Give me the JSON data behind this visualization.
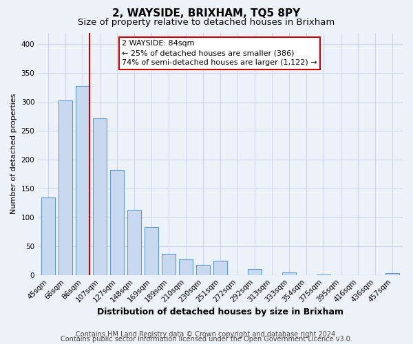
{
  "title": "2, WAYSIDE, BRIXHAM, TQ5 8PY",
  "subtitle": "Size of property relative to detached houses in Brixham",
  "xlabel": "Distribution of detached houses by size in Brixham",
  "ylabel": "Number of detached properties",
  "categories": [
    "45sqm",
    "66sqm",
    "86sqm",
    "107sqm",
    "127sqm",
    "148sqm",
    "169sqm",
    "189sqm",
    "210sqm",
    "230sqm",
    "251sqm",
    "272sqm",
    "292sqm",
    "313sqm",
    "333sqm",
    "354sqm",
    "375sqm",
    "395sqm",
    "416sqm",
    "436sqm",
    "457sqm"
  ],
  "values": [
    135,
    302,
    327,
    271,
    182,
    113,
    83,
    37,
    27,
    17,
    25,
    0,
    10,
    0,
    5,
    0,
    1,
    0,
    0,
    0,
    3
  ],
  "bar_color": "#c8d9ef",
  "bar_edge_color": "#5b9bd5",
  "highlight_bar_index": 2,
  "highlight_line_color": "#cc0000",
  "annotation_text_line1": "2 WAYSIDE: 84sqm",
  "annotation_text_line2": "← 25% of detached houses are smaller (386)",
  "annotation_text_line3": "74% of semi-detached houses are larger (1,122) →",
  "ylim": [
    0,
    420
  ],
  "yticks": [
    0,
    50,
    100,
    150,
    200,
    250,
    300,
    350,
    400
  ],
  "footer_line1": "Contains HM Land Registry data © Crown copyright and database right 2024.",
  "footer_line2": "Contains public sector information licensed under the Open Government Licence v3.0.",
  "background_color": "#edf1f8",
  "grid_color": "#d0d8e8",
  "title_fontsize": 11,
  "subtitle_fontsize": 9.5,
  "xlabel_fontsize": 9,
  "ylabel_fontsize": 8,
  "tick_fontsize": 7.5,
  "annotation_fontsize": 8,
  "footer_fontsize": 7
}
